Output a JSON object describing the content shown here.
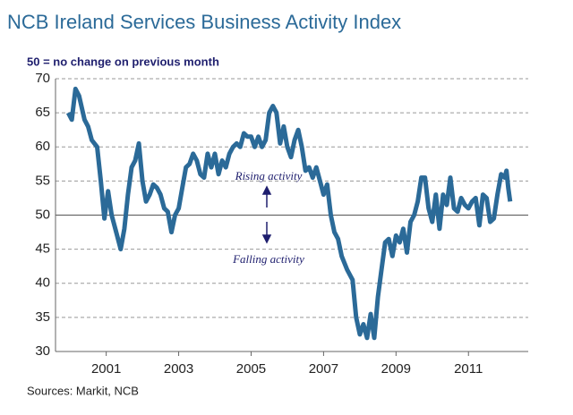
{
  "chart_data": {
    "type": "line",
    "title": "NCB Ireland Services Business Activity Index",
    "subtitle": "50 =  no change on previous month",
    "source": "Sources: Markit, NCB",
    "annotations": [
      "Rising activity",
      "Falling activity"
    ],
    "x": [
      2000.45,
      2000.55,
      2000.65,
      2000.75,
      2000.9,
      2001.0,
      2001.1,
      2001.25,
      2001.35,
      2001.45,
      2001.55,
      2001.65,
      2001.75,
      2001.9,
      2002.0,
      2002.1,
      2002.2,
      2002.3,
      2002.4,
      2002.5,
      2002.6,
      2002.7,
      2002.8,
      2002.9,
      2003.0,
      2003.1,
      2003.2,
      2003.3,
      2003.4,
      2003.5,
      2003.6,
      2003.7,
      2003.8,
      2003.9,
      2004.0,
      2004.1,
      2004.2,
      2004.3,
      2004.4,
      2004.5,
      2004.6,
      2004.7,
      2004.8,
      2004.9,
      2005.0,
      2005.1,
      2005.2,
      2005.3,
      2005.4,
      2005.5,
      2005.6,
      2005.7,
      2005.8,
      2005.9,
      2006.0,
      2006.1,
      2006.2,
      2006.3,
      2006.4,
      2006.5,
      2006.6,
      2006.7,
      2006.8,
      2006.9,
      2007.0,
      2007.1,
      2007.2,
      2007.3,
      2007.4,
      2007.5,
      2007.6,
      2007.7,
      2007.8,
      2007.9,
      2008.0,
      2008.15,
      2008.3,
      2008.4,
      2008.5,
      2008.6,
      2008.7,
      2008.8,
      2008.9,
      2009.0,
      2009.1,
      2009.2,
      2009.3,
      2009.4,
      2009.5,
      2009.6,
      2009.7,
      2009.8,
      2009.9,
      2010.0,
      2010.1,
      2010.2,
      2010.3,
      2010.4,
      2010.5,
      2010.6,
      2010.7,
      2010.8,
      2010.9,
      2011.0,
      2011.1,
      2011.2,
      2011.3,
      2011.4,
      2011.5,
      2011.6,
      2011.7,
      2011.8,
      2011.9,
      2012.0,
      2012.1,
      2012.2,
      2012.3,
      2012.4,
      2012.5,
      2012.55,
      2012.6,
      2012.65
    ],
    "series": [
      {
        "name": "Business Activity Index",
        "color": "#2b6a98",
        "values": [
          65,
          64,
          68.5,
          67.5,
          64,
          63,
          61,
          60,
          55,
          49.5,
          53.5,
          50,
          48,
          45,
          48,
          53,
          57,
          58,
          60.5,
          55,
          52,
          53,
          54.5,
          54,
          53,
          51,
          50.5,
          47.5,
          50,
          51,
          54,
          57,
          57.5,
          59,
          58,
          56,
          55.5,
          59,
          57,
          59,
          56,
          58,
          57,
          59,
          60,
          60.5,
          60,
          62,
          61.5,
          61.5,
          60,
          61.5,
          60,
          61,
          65,
          66,
          65,
          60.5,
          63,
          60,
          58.5,
          61,
          62.5,
          60,
          56.5,
          57,
          55.5,
          57,
          55,
          53,
          54.5,
          50,
          47.5,
          46.5,
          44,
          42,
          40.5,
          35,
          32.5,
          34,
          32,
          35.5,
          32,
          38,
          42,
          46,
          46.5,
          44,
          47,
          46,
          48,
          44.5,
          49,
          50,
          52,
          55.5,
          55.5,
          51,
          49,
          53,
          48,
          53,
          51.5,
          55.5,
          51,
          50.5,
          52.5,
          51.5,
          51,
          52,
          52.5,
          48.5,
          53,
          52.5,
          49,
          49.5,
          53,
          56,
          55.5,
          56.5,
          54,
          52
        ]
      }
    ],
    "xlim": [
      2000.1,
      2013.15
    ],
    "xticks": [
      {
        "value": 2001.5,
        "label": "2001"
      },
      {
        "value": 2003.5,
        "label": "2003"
      },
      {
        "value": 2005.5,
        "label": "2005"
      },
      {
        "value": 2007.5,
        "label": "2007"
      },
      {
        "value": 2009.5,
        "label": "2009"
      },
      {
        "value": 2011.5,
        "label": "2011"
      }
    ],
    "ylim": [
      30,
      70
    ],
    "yticks": [
      30,
      35,
      40,
      45,
      50,
      55,
      60,
      65,
      70
    ],
    "grid": true,
    "reference_line": 50
  }
}
